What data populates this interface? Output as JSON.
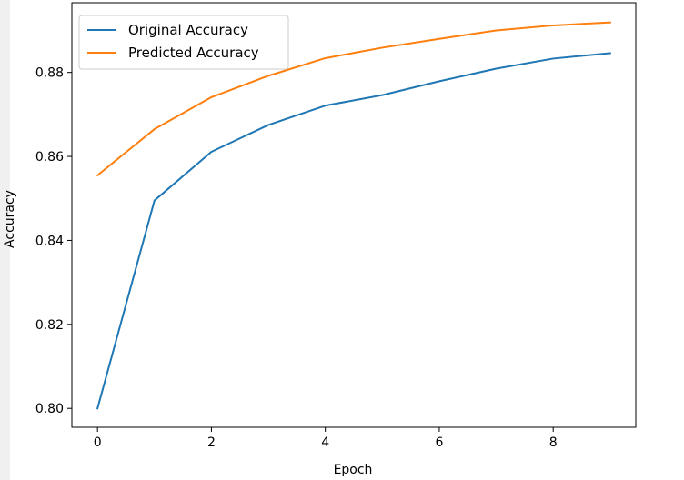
{
  "chart_data": {
    "type": "line",
    "title": "",
    "xlabel": "Epoch",
    "ylabel": "Accuracy",
    "xlim": [
      -0.45,
      9.45
    ],
    "ylim": [
      0.7955,
      0.8966
    ],
    "x": [
      0,
      1,
      2,
      3,
      4,
      5,
      6,
      7,
      8,
      9
    ],
    "x_ticks": [
      0,
      2,
      4,
      6,
      8
    ],
    "x_tick_labels": [
      "0",
      "2",
      "4",
      "6",
      "8"
    ],
    "y_ticks": [
      0.8,
      0.82,
      0.84,
      0.86,
      0.88
    ],
    "y_tick_labels": [
      "0.80",
      "0.82",
      "0.84",
      "0.86",
      "0.88"
    ],
    "legend_position": "top-left",
    "grid": false,
    "series": [
      {
        "name": "Original Accuracy",
        "color": "#1f77b4",
        "values": [
          0.8,
          0.8495,
          0.8611,
          0.8675,
          0.8721,
          0.8746,
          0.8779,
          0.8809,
          0.8833,
          0.8846
        ]
      },
      {
        "name": "Predicted Accuracy",
        "color": "#ff7f0e",
        "values": [
          0.8555,
          0.8665,
          0.8741,
          0.8792,
          0.8834,
          0.8859,
          0.888,
          0.89,
          0.8912,
          0.8919
        ]
      }
    ]
  }
}
